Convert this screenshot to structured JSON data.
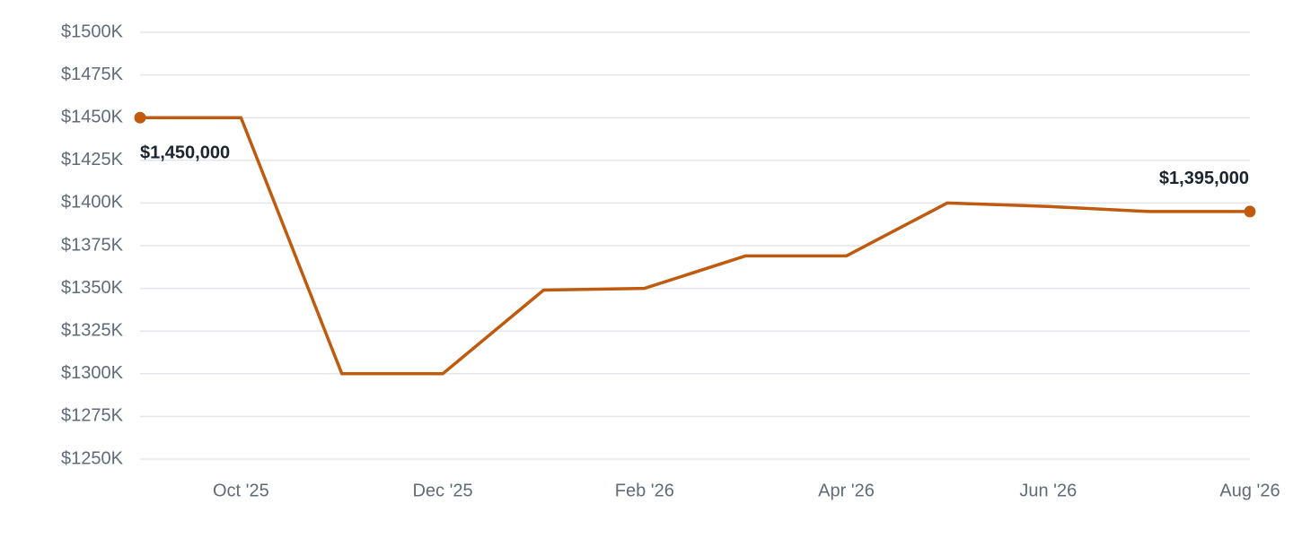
{
  "chart_data": {
    "type": "line",
    "categories": [
      null,
      "Oct '25",
      null,
      "Dec '25",
      null,
      "Feb '26",
      null,
      "Apr '26",
      null,
      "Jun '26",
      null,
      "Aug '26"
    ],
    "values": [
      1450000,
      1450000,
      1300000,
      1300000,
      1349000,
      1350000,
      1369000,
      1369000,
      1400000,
      1398000,
      1395000,
      1395000
    ],
    "value_labels": [
      "$1,450,000",
      null,
      null,
      null,
      null,
      null,
      null,
      null,
      null,
      null,
      null,
      "$1,395,000"
    ],
    "color": "#bf5a0e",
    "ylim": [
      1250000,
      1500000
    ],
    "yticks": [
      {
        "value": 1250000,
        "label": "$1250K"
      },
      {
        "value": 1275000,
        "label": "$1275K"
      },
      {
        "value": 1300000,
        "label": "$1300K"
      },
      {
        "value": 1325000,
        "label": "$1325K"
      },
      {
        "value": 1350000,
        "label": "$1350K"
      },
      {
        "value": 1375000,
        "label": "$1375K"
      },
      {
        "value": 1400000,
        "label": "$1400K"
      },
      {
        "value": 1425000,
        "label": "$1425K"
      },
      {
        "value": 1450000,
        "label": "$1450K"
      },
      {
        "value": 1475000,
        "label": "$1475K"
      },
      {
        "value": 1500000,
        "label": "$1500K"
      }
    ],
    "grid": true
  }
}
